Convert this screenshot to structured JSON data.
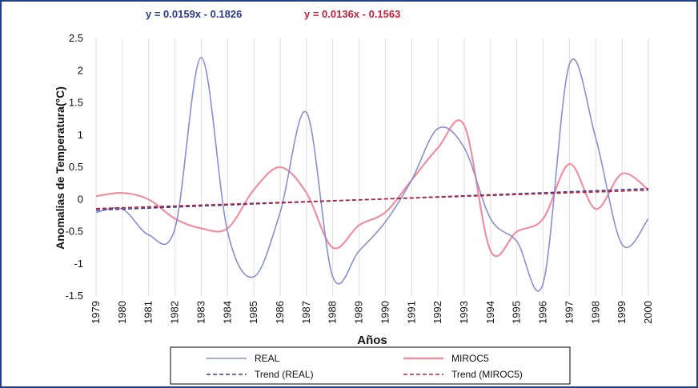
{
  "chart_data": {
    "type": "line",
    "xlabel": "Años",
    "ylabel": "Anomalias de Temperatura(°C)",
    "x": [
      "1979",
      "1980",
      "1981",
      "1982",
      "1983",
      "1984",
      "1985",
      "1986",
      "1987",
      "1988",
      "1989",
      "1990",
      "1991",
      "1992",
      "1993",
      "1994",
      "1995",
      "1996",
      "1997",
      "1998",
      "1999",
      "2000"
    ],
    "ylim": [
      -1.5,
      2.5
    ],
    "yticks": [
      2.5,
      2,
      1.5,
      1,
      0.5,
      0,
      -0.5,
      -1,
      -1.5
    ],
    "ytick_labels": [
      "2.5",
      "2",
      "1.5",
      "1",
      "0.5",
      "0",
      "-0.5",
      "-1",
      "-1.5"
    ],
    "grid": {
      "vertical": true,
      "horizontal": false
    },
    "legend_placement": "bottom-center",
    "equations": [
      {
        "text": "y = 0.0159x - 0.1826",
        "color": "#2b3a8c"
      },
      {
        "text": "y = 0.0136x - 0.1563",
        "color": "#c0203a"
      }
    ],
    "series": [
      {
        "name": "REAL",
        "color": "#8a8fcf",
        "values": [
          -0.2,
          -0.15,
          -0.55,
          -0.45,
          2.2,
          -0.5,
          -1.2,
          -0.2,
          1.35,
          -1.2,
          -0.8,
          -0.35,
          0.3,
          1.1,
          0.8,
          -0.3,
          -0.65,
          -1.3,
          2.1,
          0.95,
          -0.7,
          -0.3
        ]
      },
      {
        "name": "MIROC5",
        "color": "#f08fa0",
        "values": [
          0.05,
          0.1,
          0.0,
          -0.3,
          -0.45,
          -0.45,
          0.15,
          0.5,
          0.1,
          -0.75,
          -0.4,
          -0.2,
          0.3,
          0.8,
          1.15,
          -0.8,
          -0.5,
          -0.3,
          0.55,
          -0.15,
          0.4,
          0.15
        ]
      },
      {
        "name": "Trend (REAL)",
        "color": "#3a3f8f",
        "dashed": true,
        "slope": 0.0159,
        "intercept": -0.1826
      },
      {
        "name": "Trend (MIROC5)",
        "color": "#c0203a",
        "dashed": true,
        "slope": 0.0136,
        "intercept": -0.1563
      }
    ]
  }
}
